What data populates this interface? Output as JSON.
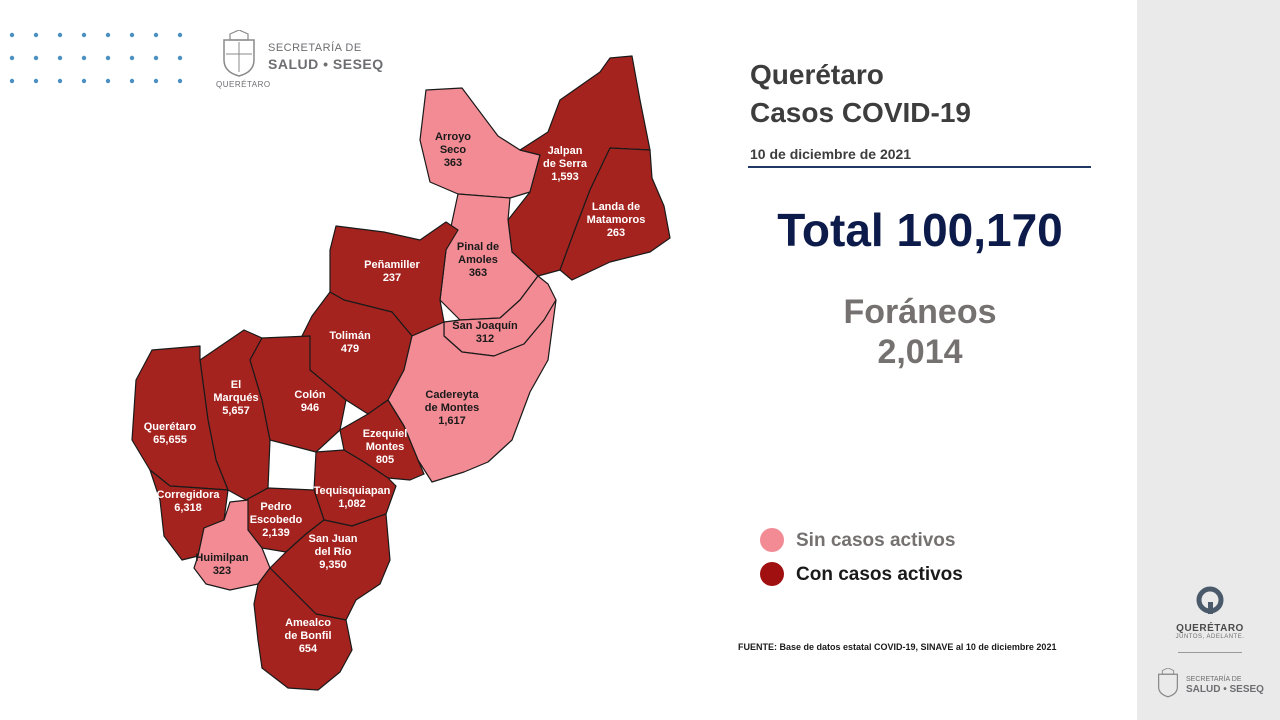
{
  "header": {
    "agency_line1": "SECRETARÍA DE",
    "agency_line2": "SALUD • SESEQ",
    "agency_line3": "QUERÉTARO"
  },
  "title": {
    "line1": "Querétaro",
    "line2": "Casos COVID-19",
    "date": "10 de diciembre de 2021"
  },
  "total_text": "Total 100,170",
  "foraneos": {
    "label": "Foráneos",
    "value": "2,014"
  },
  "legend": [
    {
      "label": "Sin casos activos",
      "color": "#f28b94"
    },
    {
      "label": "Con casos activos",
      "color": "#a01010"
    }
  ],
  "source_note": "FUENTE: Base de datos estatal COVID-19, SINAVE al 10 de diciembre 2021",
  "sidebar": {
    "brand_name": "QUERÉTARO",
    "brand_tagline": "JUNTOS, ADELANTE.",
    "agency_line1": "SECRETARÍA DE",
    "agency_line2": "SALUD • SESEQ"
  },
  "colors": {
    "no_active": "#f28b94",
    "active": "#a5231f",
    "title_dark": "#0d1b4b",
    "rule": "#1f3864"
  },
  "municipalities": [
    {
      "id": "arroyo-seco",
      "name_lines": [
        "Arroyo",
        "Seco"
      ],
      "cases": "363",
      "active": false
    },
    {
      "id": "jalpan",
      "name_lines": [
        "Jalpan",
        "de Serra"
      ],
      "cases": "1,593",
      "active": true
    },
    {
      "id": "landa",
      "name_lines": [
        "Landa de",
        "Matamoros"
      ],
      "cases": "263",
      "active": true
    },
    {
      "id": "pinal",
      "name_lines": [
        "Pinal de",
        "Amoles"
      ],
      "cases": "363",
      "active": false
    },
    {
      "id": "penamiller",
      "name_lines": [
        "Peñamiller"
      ],
      "cases": "237",
      "active": true
    },
    {
      "id": "san-joaquin",
      "name_lines": [
        "San Joaquín"
      ],
      "cases": "312",
      "active": false
    },
    {
      "id": "toliman",
      "name_lines": [
        "Tolimán"
      ],
      "cases": "479",
      "active": true
    },
    {
      "id": "cadereyta",
      "name_lines": [
        "Cadereyta",
        "de Montes"
      ],
      "cases": "1,617",
      "active": false
    },
    {
      "id": "el-marques",
      "name_lines": [
        "El",
        "Marqués"
      ],
      "cases": "5,657",
      "active": true
    },
    {
      "id": "colon",
      "name_lines": [
        "Colón"
      ],
      "cases": "946",
      "active": true
    },
    {
      "id": "queretaro",
      "name_lines": [
        "Querétaro"
      ],
      "cases": "65,655",
      "active": true
    },
    {
      "id": "ezequiel",
      "name_lines": [
        "Ezequiel",
        "Montes"
      ],
      "cases": "805",
      "active": true
    },
    {
      "id": "corregidora",
      "name_lines": [
        "Corregidora"
      ],
      "cases": "6,318",
      "active": true
    },
    {
      "id": "tequisquiapan",
      "name_lines": [
        "Tequisquiapan"
      ],
      "cases": "1,082",
      "active": true
    },
    {
      "id": "pedro-escobedo",
      "name_lines": [
        "Pedro",
        "Escobedo"
      ],
      "cases": "2,139",
      "active": true
    },
    {
      "id": "san-juan",
      "name_lines": [
        "San Juan",
        "del Río"
      ],
      "cases": "9,350",
      "active": true
    },
    {
      "id": "huimilpan",
      "name_lines": [
        "Huimilpan"
      ],
      "cases": "323",
      "active": false
    },
    {
      "id": "amealco",
      "name_lines": [
        "Amealco",
        "de Bonfil"
      ],
      "cases": "654",
      "active": true
    }
  ]
}
